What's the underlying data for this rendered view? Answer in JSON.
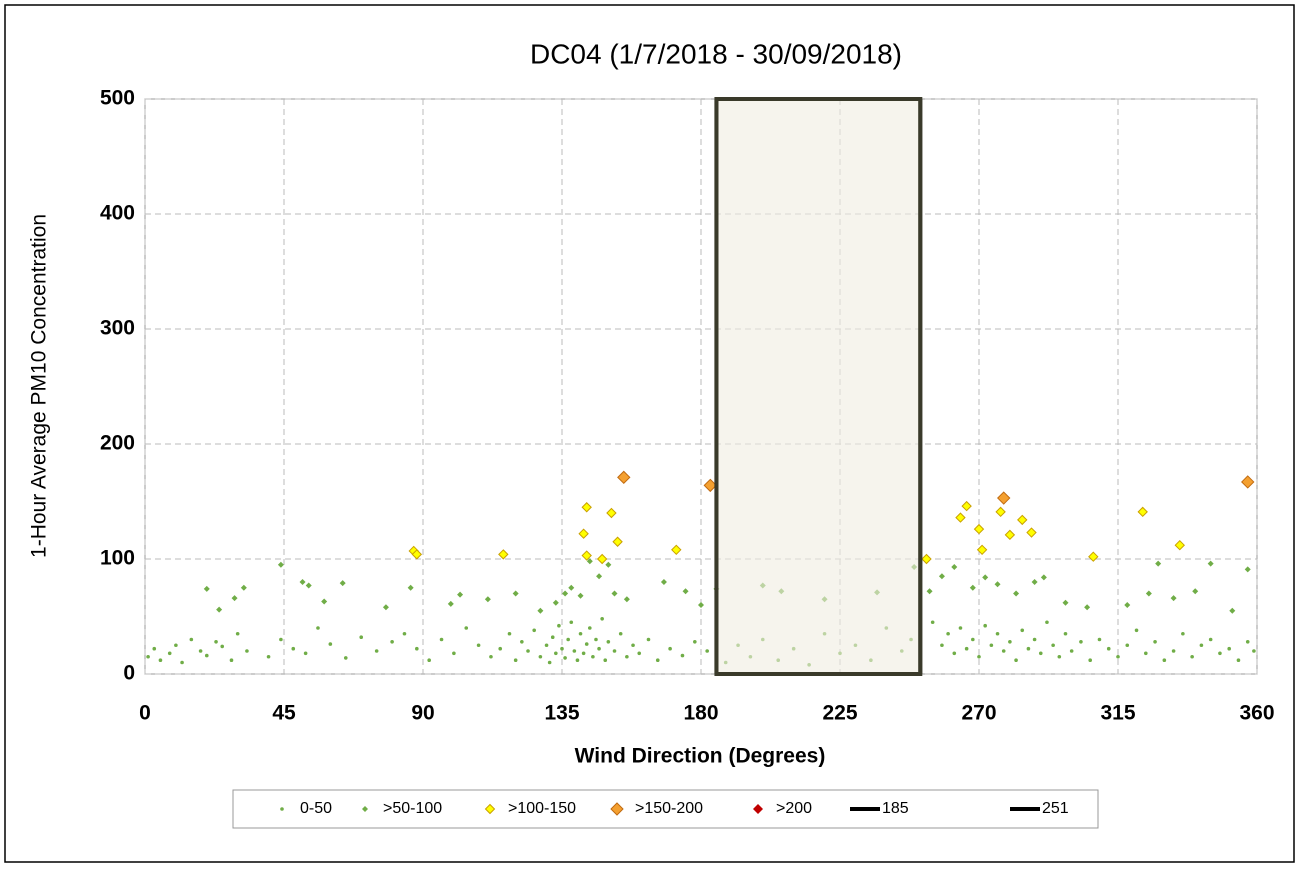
{
  "chart_data": {
    "type": "scatter",
    "title": "DC04 (1/7/2018 - 30/09/2018)",
    "x_label": "Wind Direction (Degrees)",
    "y_label": "1-Hour Average PM10 Concentration",
    "xlim": [
      0,
      360
    ],
    "xticks": [
      0,
      45,
      90,
      135,
      180,
      225,
      270,
      315,
      360
    ],
    "ylim": [
      0,
      500
    ],
    "yticks": [
      0,
      100,
      200,
      300,
      400,
      500
    ],
    "grid": true,
    "legend": "bottom",
    "series": [
      {
        "name": "0-50",
        "color": "#70ad47",
        "marker": "circle",
        "x": [
          1,
          3,
          5,
          8,
          10,
          12,
          15,
          18,
          20,
          23,
          25,
          28,
          30,
          33,
          40,
          44,
          48,
          52,
          56,
          60,
          65,
          70,
          75,
          80,
          84,
          88,
          92,
          96,
          100,
          104,
          108,
          112,
          115,
          118,
          120,
          122,
          124,
          126,
          128,
          130,
          131,
          132,
          133,
          134,
          135,
          136,
          137,
          138,
          139,
          140,
          141,
          142,
          143,
          144,
          145,
          146,
          147,
          148,
          149,
          150,
          152,
          154,
          156,
          158,
          160,
          163,
          166,
          170,
          174,
          178,
          182,
          188,
          192,
          196,
          200,
          205,
          210,
          215,
          220,
          225,
          230,
          235,
          240,
          245,
          248,
          255,
          258,
          260,
          262,
          264,
          266,
          268,
          270,
          272,
          274,
          276,
          278,
          280,
          282,
          284,
          286,
          288,
          290,
          292,
          294,
          296,
          298,
          300,
          303,
          306,
          309,
          312,
          315,
          318,
          321,
          324,
          327,
          330,
          333,
          336,
          339,
          342,
          345,
          348,
          351,
          354,
          357,
          359
        ],
        "values": [
          15,
          22,
          12,
          18,
          25,
          10,
          30,
          20,
          16,
          28,
          24,
          12,
          35,
          20,
          15,
          30,
          22,
          18,
          40,
          26,
          14,
          32,
          20,
          28,
          35,
          22,
          12,
          30,
          18,
          40,
          25,
          15,
          22,
          35,
          12,
          28,
          20,
          38,
          15,
          25,
          10,
          32,
          18,
          42,
          22,
          14,
          30,
          45,
          20,
          12,
          35,
          18,
          26,
          40,
          15,
          30,
          22,
          48,
          12,
          28,
          20,
          35,
          15,
          25,
          18,
          30,
          12,
          22,
          16,
          28,
          20,
          10,
          25,
          15,
          30,
          12,
          22,
          8,
          35,
          18,
          25,
          12,
          40,
          20,
          30,
          45,
          25,
          35,
          18,
          40,
          22,
          30,
          15,
          42,
          25,
          35,
          20,
          28,
          12,
          38,
          22,
          30,
          18,
          45,
          25,
          15,
          35,
          20,
          28,
          12,
          30,
          22,
          15,
          25,
          38,
          18,
          28,
          12,
          20,
          35,
          15,
          25,
          30,
          18,
          22,
          12,
          28,
          20
        ]
      },
      {
        "name": ">50-100",
        "color": "#70ad47",
        "marker": "diamond",
        "x": [
          20,
          24,
          29,
          32,
          44,
          51,
          53,
          58,
          64,
          78,
          86,
          99,
          102,
          111,
          120,
          128,
          133,
          136,
          138,
          141,
          144,
          147,
          150,
          152,
          156,
          168,
          175,
          180,
          185,
          200,
          206,
          220,
          237,
          249,
          254,
          258,
          262,
          268,
          272,
          276,
          282,
          288,
          291,
          298,
          305,
          318,
          325,
          328,
          333,
          340,
          345,
          352,
          357
        ],
        "values": [
          74,
          56,
          66,
          75,
          95,
          80,
          77,
          63,
          79,
          58,
          75,
          61,
          69,
          65,
          70,
          55,
          62,
          70,
          75,
          68,
          98,
          85,
          95,
          70,
          65,
          80,
          72,
          60,
          74,
          77,
          72,
          65,
          71,
          93,
          72,
          85,
          93,
          75,
          84,
          78,
          70,
          80,
          84,
          62,
          58,
          60,
          70,
          96,
          66,
          72,
          96,
          55,
          91
        ]
      },
      {
        "name": ">100-150",
        "color": "#ffff00",
        "edge": "#c9a000",
        "marker": "diamond",
        "x": [
          87,
          88,
          116,
          142,
          143,
          143,
          148,
          151,
          153,
          172,
          253,
          264,
          266,
          270,
          271,
          277,
          280,
          284,
          287,
          307,
          323,
          335
        ],
        "values": [
          107,
          104,
          104,
          122,
          145,
          103,
          100,
          140,
          115,
          108,
          100,
          136,
          146,
          126,
          108,
          141,
          121,
          134,
          123,
          102,
          141,
          112
        ]
      },
      {
        "name": ">150-200",
        "color": "#f4a030",
        "edge": "#c06a10",
        "marker": "diamond",
        "x": [
          155,
          183,
          278,
          357
        ],
        "values": [
          171,
          164,
          153,
          167
        ]
      },
      {
        "name": ">200",
        "color": "#c00000",
        "marker": "diamond",
        "x": [],
        "values": []
      },
      {
        "name": "185",
        "color": "#3a3a2a",
        "marker": "line",
        "x": [
          185,
          185
        ],
        "values": [
          0,
          500
        ]
      },
      {
        "name": "251",
        "color": "#3a3a2a",
        "marker": "line",
        "x": [
          251,
          251
        ],
        "values": [
          0,
          500
        ]
      }
    ]
  }
}
